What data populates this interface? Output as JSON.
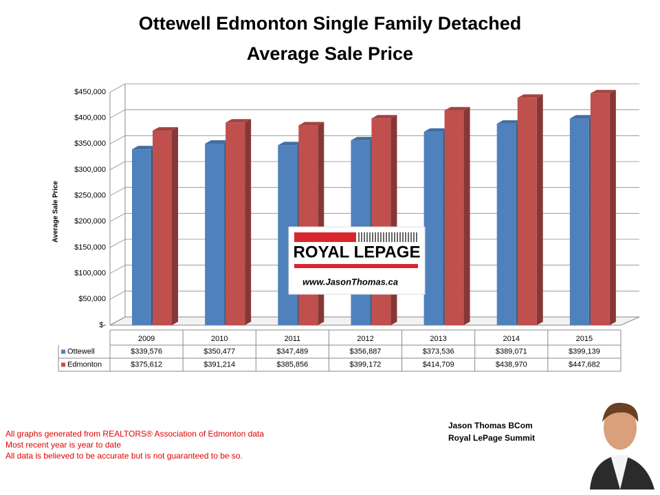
{
  "chart_data": {
    "type": "bar",
    "title": "Ottewell Edmonton Single Family Detached",
    "subtitle": "Average Sale Price",
    "y_label": "Average Sale Price",
    "categories": [
      "2009",
      "2010",
      "2011",
      "2012",
      "2013",
      "2014",
      "2015"
    ],
    "series": [
      {
        "name": "Ottewell",
        "color": "#4f81bd",
        "values": [
          339576,
          350477,
          347489,
          356887,
          373536,
          389071,
          399139
        ],
        "value_labels": [
          "$339,576",
          "$350,477",
          "$347,489",
          "$356,887",
          "$373,536",
          "$389,071",
          "$399,139"
        ]
      },
      {
        "name": "Edmonton",
        "color": "#c0504d",
        "values": [
          375612,
          391214,
          385856,
          399172,
          414709,
          438970,
          447682
        ],
        "value_labels": [
          "$375,612",
          "$391,214",
          "$385,856",
          "$399,172",
          "$414,709",
          "$438,970",
          "$447,682"
        ]
      }
    ],
    "ylim": [
      0,
      450000
    ],
    "yticks": [
      {
        "value": 0,
        "label": "$-"
      },
      {
        "value": 50000,
        "label": "$50,000"
      },
      {
        "value": 100000,
        "label": "$100,000"
      },
      {
        "value": 150000,
        "label": "$150,000"
      },
      {
        "value": 200000,
        "label": "$200,000"
      },
      {
        "value": 250000,
        "label": "$250,000"
      },
      {
        "value": 300000,
        "label": "$300,000"
      },
      {
        "value": 350000,
        "label": "$350,000"
      },
      {
        "value": 400000,
        "label": "$400,000"
      },
      {
        "value": 450000,
        "label": "$450,000"
      }
    ],
    "grid": true
  },
  "logo": {
    "brand": "ROYAL LEPAGE",
    "url": "www.JasonThomas.ca"
  },
  "notes": [
    "All graphs generated from REALTORS® Association of Edmonton data",
    "Most recent year is year to date",
    "All data is believed to be accurate but is not guaranteed to be so."
  ],
  "author": {
    "name": "Jason Thomas BCom",
    "company": "Royal LePage Summit"
  }
}
